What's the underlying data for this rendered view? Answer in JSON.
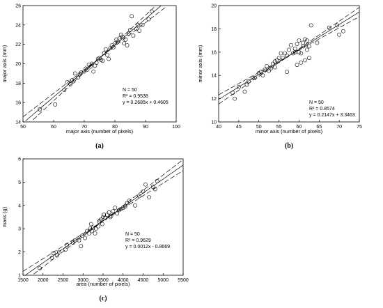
{
  "chart_data": [
    {
      "type": "scatter",
      "panel_label": "(a)",
      "xlabel": "major axis (number of pixels)",
      "ylabel": "major axis (mm)",
      "xlim": [
        50,
        100
      ],
      "ylim": [
        14,
        26
      ],
      "xticks": [
        "50",
        "60",
        "70",
        "80",
        "90",
        "100"
      ],
      "yticks": [
        "14",
        "16",
        "18",
        "20",
        "22",
        "24",
        "26"
      ],
      "stats": [
        "N = 50",
        "R² = 0.9538",
        "y = 0.2685x + 0.4605"
      ],
      "fit": {
        "slope": 0.2685,
        "intercept": 0.4605
      },
      "points": [
        [
          55.5,
          15.3
        ],
        [
          60.5,
          15.8
        ],
        [
          63.5,
          17.3
        ],
        [
          64.5,
          18.1
        ],
        [
          65.5,
          17.9
        ],
        [
          66,
          18.3
        ],
        [
          66.5,
          18.2
        ],
        [
          67,
          19.0
        ],
        [
          68,
          18.6
        ],
        [
          68.5,
          18.9
        ],
        [
          69,
          19.1
        ],
        [
          70,
          19.2
        ],
        [
          70.5,
          19.5
        ],
        [
          71,
          19.4
        ],
        [
          71.5,
          19.9
        ],
        [
          72,
          19.7
        ],
        [
          72.5,
          20.0
        ],
        [
          73,
          19.2
        ],
        [
          73.5,
          19.8
        ],
        [
          74,
          20.1
        ],
        [
          74.5,
          20.5
        ],
        [
          75,
          20.6
        ],
        [
          75.5,
          20.4
        ],
        [
          76,
          20.3
        ],
        [
          76.5,
          21.1
        ],
        [
          77,
          21.5
        ],
        [
          77.5,
          20.9
        ],
        [
          78,
          20.5
        ],
        [
          78.5,
          21.6
        ],
        [
          79,
          21.9
        ],
        [
          79.5,
          21.7
        ],
        [
          80,
          22.1
        ],
        [
          80.5,
          22.5
        ],
        [
          81,
          22.3
        ],
        [
          81.5,
          22.6
        ],
        [
          82,
          23.0
        ],
        [
          82.5,
          22.8
        ],
        [
          83,
          22.1
        ],
        [
          83.5,
          22.5
        ],
        [
          84,
          21.9
        ],
        [
          84.5,
          23.1
        ],
        [
          85,
          23.5
        ],
        [
          85.5,
          24.9
        ],
        [
          86,
          22.9
        ],
        [
          87,
          23.6
        ],
        [
          87.5,
          24.0
        ],
        [
          88,
          23.4
        ],
        [
          89,
          24.0
        ],
        [
          91,
          24.6
        ],
        [
          92,
          25.4
        ]
      ]
    },
    {
      "type": "scatter",
      "panel_label": "(b)",
      "xlabel": "minor axis (number of pixels)",
      "ylabel": "minor axis (mm)",
      "xlim": [
        40,
        75
      ],
      "ylim": [
        10,
        20
      ],
      "xticks": [
        "40",
        "45",
        "50",
        "55",
        "60",
        "65",
        "70",
        "75"
      ],
      "yticks": [
        "10",
        "12",
        "14",
        "16",
        "18",
        "20"
      ],
      "stats": [
        "N = 50",
        "R² = 0.8574",
        "y = 0.2147x + 3.3463"
      ],
      "fit": {
        "slope": 0.2147,
        "intercept": 3.3463
      },
      "points": [
        [
          43.5,
          12.5
        ],
        [
          44,
          12.0
        ],
        [
          45,
          13.0
        ],
        [
          46.5,
          12.6
        ],
        [
          47,
          13.2
        ],
        [
          47.5,
          13.5
        ],
        [
          48.5,
          13.8
        ],
        [
          49,
          13.8
        ],
        [
          50,
          14.2
        ],
        [
          50.5,
          14.3
        ],
        [
          51,
          14.0
        ],
        [
          51.5,
          14.5
        ],
        [
          52,
          14.8
        ],
        [
          52.5,
          14.4
        ],
        [
          53,
          14.6
        ],
        [
          53.5,
          15.0
        ],
        [
          54,
          15.2
        ],
        [
          54,
          14.7
        ],
        [
          54.5,
          15.3
        ],
        [
          55,
          15.5
        ],
        [
          55.5,
          15.9
        ],
        [
          56,
          15.5
        ],
        [
          56.5,
          15.9
        ],
        [
          57,
          15.7
        ],
        [
          57,
          14.3
        ],
        [
          57.5,
          16.2
        ],
        [
          58,
          16.6
        ],
        [
          58.5,
          15.9
        ],
        [
          59,
          16.3
        ],
        [
          59,
          16.0
        ],
        [
          59.5,
          16.7
        ],
        [
          59.5,
          14.9
        ],
        [
          60,
          16.0
        ],
        [
          60,
          17.0
        ],
        [
          60.5,
          15.1
        ],
        [
          60.5,
          15.9
        ],
        [
          61,
          16.5
        ],
        [
          61,
          16.8
        ],
        [
          61.5,
          17.1
        ],
        [
          61.5,
          15.3
        ],
        [
          62,
          16.2
        ],
        [
          62,
          17.0
        ],
        [
          62.5,
          15.5
        ],
        [
          62.5,
          16.5
        ],
        [
          63,
          18.3
        ],
        [
          64.5,
          16.8
        ],
        [
          67.5,
          18.1
        ],
        [
          69.5,
          18.3
        ],
        [
          70,
          17.5
        ],
        [
          71,
          17.8
        ]
      ]
    },
    {
      "type": "scatter",
      "panel_label": "(c)",
      "xlabel": "area (number of pixels)",
      "ylabel": "mass (g)",
      "xlim": [
        1500,
        5500
      ],
      "ylim": [
        1,
        6
      ],
      "xticks": [
        "1500",
        "2000",
        "2500",
        "3000",
        "3500",
        "4000",
        "4500",
        "5000",
        "5500"
      ],
      "yticks": [
        "1",
        "2",
        "3",
        "4",
        "5",
        "6"
      ],
      "stats": [
        "N = 50",
        "R² = 0.9629",
        "y = 0.0012x - 0.8669"
      ],
      "fit": {
        "slope": 0.0012,
        "intercept": -0.8669
      },
      "points": [
        [
          1920,
          1.3
        ],
        [
          2220,
          1.75
        ],
        [
          2260,
          1.95
        ],
        [
          2350,
          1.85
        ],
        [
          2400,
          2.0
        ],
        [
          2560,
          2.1
        ],
        [
          2600,
          2.3
        ],
        [
          2750,
          2.4
        ],
        [
          2800,
          2.5
        ],
        [
          2900,
          2.5
        ],
        [
          2950,
          2.25
        ],
        [
          2980,
          2.7
        ],
        [
          3050,
          2.6
        ],
        [
          3100,
          2.9
        ],
        [
          3150,
          2.8
        ],
        [
          3180,
          3.0
        ],
        [
          3200,
          3.2
        ],
        [
          3220,
          2.9
        ],
        [
          3250,
          3.05
        ],
        [
          3300,
          2.8
        ],
        [
          3320,
          3.0
        ],
        [
          3380,
          3.1
        ],
        [
          3400,
          3.3
        ],
        [
          3450,
          3.4
        ],
        [
          3480,
          3.2
        ],
        [
          3500,
          3.5
        ],
        [
          3520,
          3.6
        ],
        [
          3550,
          3.45
        ],
        [
          3600,
          3.6
        ],
        [
          3650,
          3.7
        ],
        [
          3680,
          3.5
        ],
        [
          3700,
          3.55
        ],
        [
          3750,
          3.75
        ],
        [
          3800,
          3.9
        ],
        [
          3850,
          3.65
        ],
        [
          3900,
          3.8
        ],
        [
          3950,
          3.85
        ],
        [
          4000,
          3.9
        ],
        [
          4100,
          4.1
        ],
        [
          4150,
          4.2
        ],
        [
          4300,
          4.0
        ],
        [
          4400,
          4.4
        ],
        [
          4500,
          4.6
        ],
        [
          4560,
          4.9
        ],
        [
          4650,
          4.35
        ],
        [
          4750,
          4.8
        ],
        [
          4800,
          4.7
        ],
        [
          4850,
          5.05
        ],
        [
          3420,
          3.35
        ],
        [
          4050,
          3.95
        ]
      ]
    }
  ]
}
